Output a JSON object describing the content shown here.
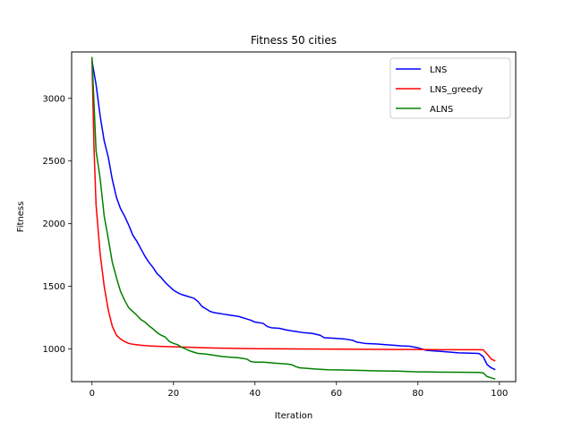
{
  "chart_data": {
    "type": "line",
    "title": "Fitness 50 cities",
    "xlabel": "Iteration",
    "ylabel": "Fitness",
    "xlim": [
      -5,
      104
    ],
    "ylim": [
      740,
      3370
    ],
    "xticks": [
      0,
      20,
      40,
      60,
      80,
      100
    ],
    "yticks": [
      1000,
      1500,
      2000,
      2500,
      3000
    ],
    "grid": false,
    "legend_position": "top-right",
    "series": [
      {
        "name": "LNS",
        "color": "#0000ff",
        "points": [
          [
            0,
            3300
          ],
          [
            1,
            3110
          ],
          [
            2,
            2860
          ],
          [
            3,
            2660
          ],
          [
            4,
            2530
          ],
          [
            5,
            2350
          ],
          [
            6,
            2210
          ],
          [
            7,
            2120
          ],
          [
            8,
            2060
          ],
          [
            9,
            1990
          ],
          [
            10,
            1910
          ],
          [
            11,
            1860
          ],
          [
            12,
            1800
          ],
          [
            13,
            1740
          ],
          [
            14,
            1690
          ],
          [
            15,
            1650
          ],
          [
            16,
            1600
          ],
          [
            17,
            1570
          ],
          [
            18,
            1530
          ],
          [
            19,
            1500
          ],
          [
            20,
            1470
          ],
          [
            21,
            1450
          ],
          [
            22,
            1435
          ],
          [
            23,
            1425
          ],
          [
            24,
            1415
          ],
          [
            25,
            1405
          ],
          [
            26,
            1380
          ],
          [
            27,
            1340
          ],
          [
            28,
            1320
          ],
          [
            29,
            1300
          ],
          [
            30,
            1290
          ],
          [
            32,
            1280
          ],
          [
            34,
            1270
          ],
          [
            36,
            1260
          ],
          [
            38,
            1240
          ],
          [
            39,
            1230
          ],
          [
            40,
            1215
          ],
          [
            42,
            1205
          ],
          [
            43,
            1180
          ],
          [
            44,
            1170
          ],
          [
            46,
            1165
          ],
          [
            48,
            1150
          ],
          [
            50,
            1140
          ],
          [
            52,
            1130
          ],
          [
            54,
            1125
          ],
          [
            56,
            1110
          ],
          [
            57,
            1090
          ],
          [
            60,
            1085
          ],
          [
            62,
            1080
          ],
          [
            64,
            1070
          ],
          [
            65,
            1055
          ],
          [
            67,
            1045
          ],
          [
            70,
            1040
          ],
          [
            72,
            1035
          ],
          [
            74,
            1030
          ],
          [
            76,
            1025
          ],
          [
            78,
            1022
          ],
          [
            80,
            1010
          ],
          [
            82,
            990
          ],
          [
            84,
            985
          ],
          [
            86,
            980
          ],
          [
            88,
            975
          ],
          [
            90,
            970
          ],
          [
            92,
            968
          ],
          [
            94,
            966
          ],
          [
            95,
            964
          ],
          [
            96,
            940
          ],
          [
            97,
            875
          ],
          [
            98,
            850
          ],
          [
            99,
            835
          ]
        ]
      },
      {
        "name": "LNS_greedy",
        "color": "#ff0000",
        "points": [
          [
            0,
            3310
          ],
          [
            0.5,
            2600
          ],
          [
            1,
            2150
          ],
          [
            2,
            1760
          ],
          [
            3,
            1500
          ],
          [
            4,
            1310
          ],
          [
            5,
            1180
          ],
          [
            6,
            1110
          ],
          [
            7,
            1080
          ],
          [
            8,
            1060
          ],
          [
            9,
            1045
          ],
          [
            10,
            1038
          ],
          [
            12,
            1030
          ],
          [
            14,
            1025
          ],
          [
            16,
            1022
          ],
          [
            18,
            1020
          ],
          [
            20,
            1018
          ],
          [
            22,
            1016
          ],
          [
            24,
            1014
          ],
          [
            26,
            1012
          ],
          [
            28,
            1010
          ],
          [
            30,
            1008
          ],
          [
            35,
            1005
          ],
          [
            40,
            1003
          ],
          [
            45,
            1002
          ],
          [
            50,
            1001
          ],
          [
            55,
            1000
          ],
          [
            60,
            999
          ],
          [
            65,
            998
          ],
          [
            70,
            997
          ],
          [
            75,
            996
          ],
          [
            80,
            996
          ],
          [
            85,
            995
          ],
          [
            90,
            995
          ],
          [
            94,
            995
          ],
          [
            96,
            994
          ],
          [
            97,
            960
          ],
          [
            98,
            920
          ],
          [
            99,
            905
          ]
        ]
      },
      {
        "name": "ALNS",
        "color": "#008000",
        "points": [
          [
            0,
            3330
          ],
          [
            1,
            2580
          ],
          [
            2,
            2360
          ],
          [
            3,
            2060
          ],
          [
            4,
            1880
          ],
          [
            5,
            1690
          ],
          [
            6,
            1570
          ],
          [
            7,
            1460
          ],
          [
            8,
            1390
          ],
          [
            9,
            1330
          ],
          [
            10,
            1300
          ],
          [
            11,
            1270
          ],
          [
            12,
            1235
          ],
          [
            13,
            1215
          ],
          [
            14,
            1185
          ],
          [
            15,
            1160
          ],
          [
            16,
            1130
          ],
          [
            17,
            1110
          ],
          [
            18,
            1095
          ],
          [
            19,
            1060
          ],
          [
            20,
            1045
          ],
          [
            21,
            1035
          ],
          [
            22,
            1015
          ],
          [
            23,
            1000
          ],
          [
            24,
            985
          ],
          [
            25,
            975
          ],
          [
            26,
            965
          ],
          [
            28,
            960
          ],
          [
            30,
            950
          ],
          [
            32,
            940
          ],
          [
            34,
            935
          ],
          [
            36,
            930
          ],
          [
            37,
            925
          ],
          [
            38,
            920
          ],
          [
            39,
            900
          ],
          [
            40,
            895
          ],
          [
            42,
            895
          ],
          [
            44,
            890
          ],
          [
            46,
            885
          ],
          [
            48,
            880
          ],
          [
            49,
            875
          ],
          [
            50,
            860
          ],
          [
            51,
            850
          ],
          [
            53,
            845
          ],
          [
            55,
            840
          ],
          [
            58,
            835
          ],
          [
            65,
            830
          ],
          [
            70,
            826
          ],
          [
            75,
            824
          ],
          [
            78,
            820
          ],
          [
            80,
            818
          ],
          [
            82,
            818
          ],
          [
            85,
            816
          ],
          [
            90,
            815
          ],
          [
            95,
            813
          ],
          [
            96,
            810
          ],
          [
            97,
            780
          ],
          [
            98,
            770
          ],
          [
            99,
            760
          ]
        ]
      }
    ]
  }
}
